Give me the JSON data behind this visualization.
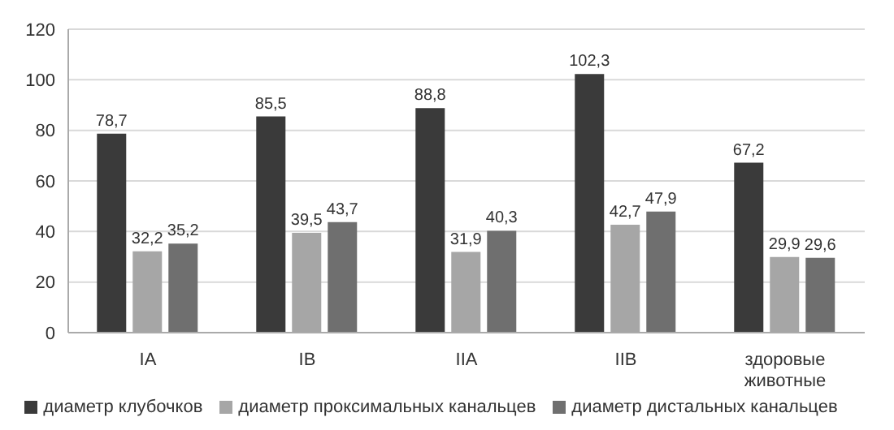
{
  "chart_data": {
    "type": "bar",
    "categories": [
      "IA",
      "IB",
      "IIA",
      "IIB",
      "здоровые животные"
    ],
    "series": [
      {
        "name": "диаметр клубочков",
        "color": "#3a3a3a",
        "values": [
          78.7,
          85.5,
          88.8,
          102.3,
          67.2
        ],
        "value_labels": [
          "78,7",
          "85,5",
          "88,8",
          "102,3",
          "67,2"
        ]
      },
      {
        "name": "диаметр проксимальных канальцев",
        "color": "#a6a6a6",
        "values": [
          32.2,
          39.5,
          31.9,
          42.7,
          29.9
        ],
        "value_labels": [
          "32,2",
          "39,5",
          "31,9",
          "42,7",
          "29,9"
        ]
      },
      {
        "name": "диаметр дистальных канальцев",
        "color": "#6f6f6f",
        "values": [
          35.2,
          43.7,
          40.3,
          47.9,
          29.6
        ],
        "value_labels": [
          "35,2",
          "43,7",
          "40,3",
          "47,9",
          "29,6"
        ]
      }
    ],
    "ylim": [
      0,
      120
    ],
    "yticks": [
      0,
      20,
      40,
      60,
      80,
      100,
      120
    ],
    "grid": "y",
    "legend": "bottom"
  }
}
